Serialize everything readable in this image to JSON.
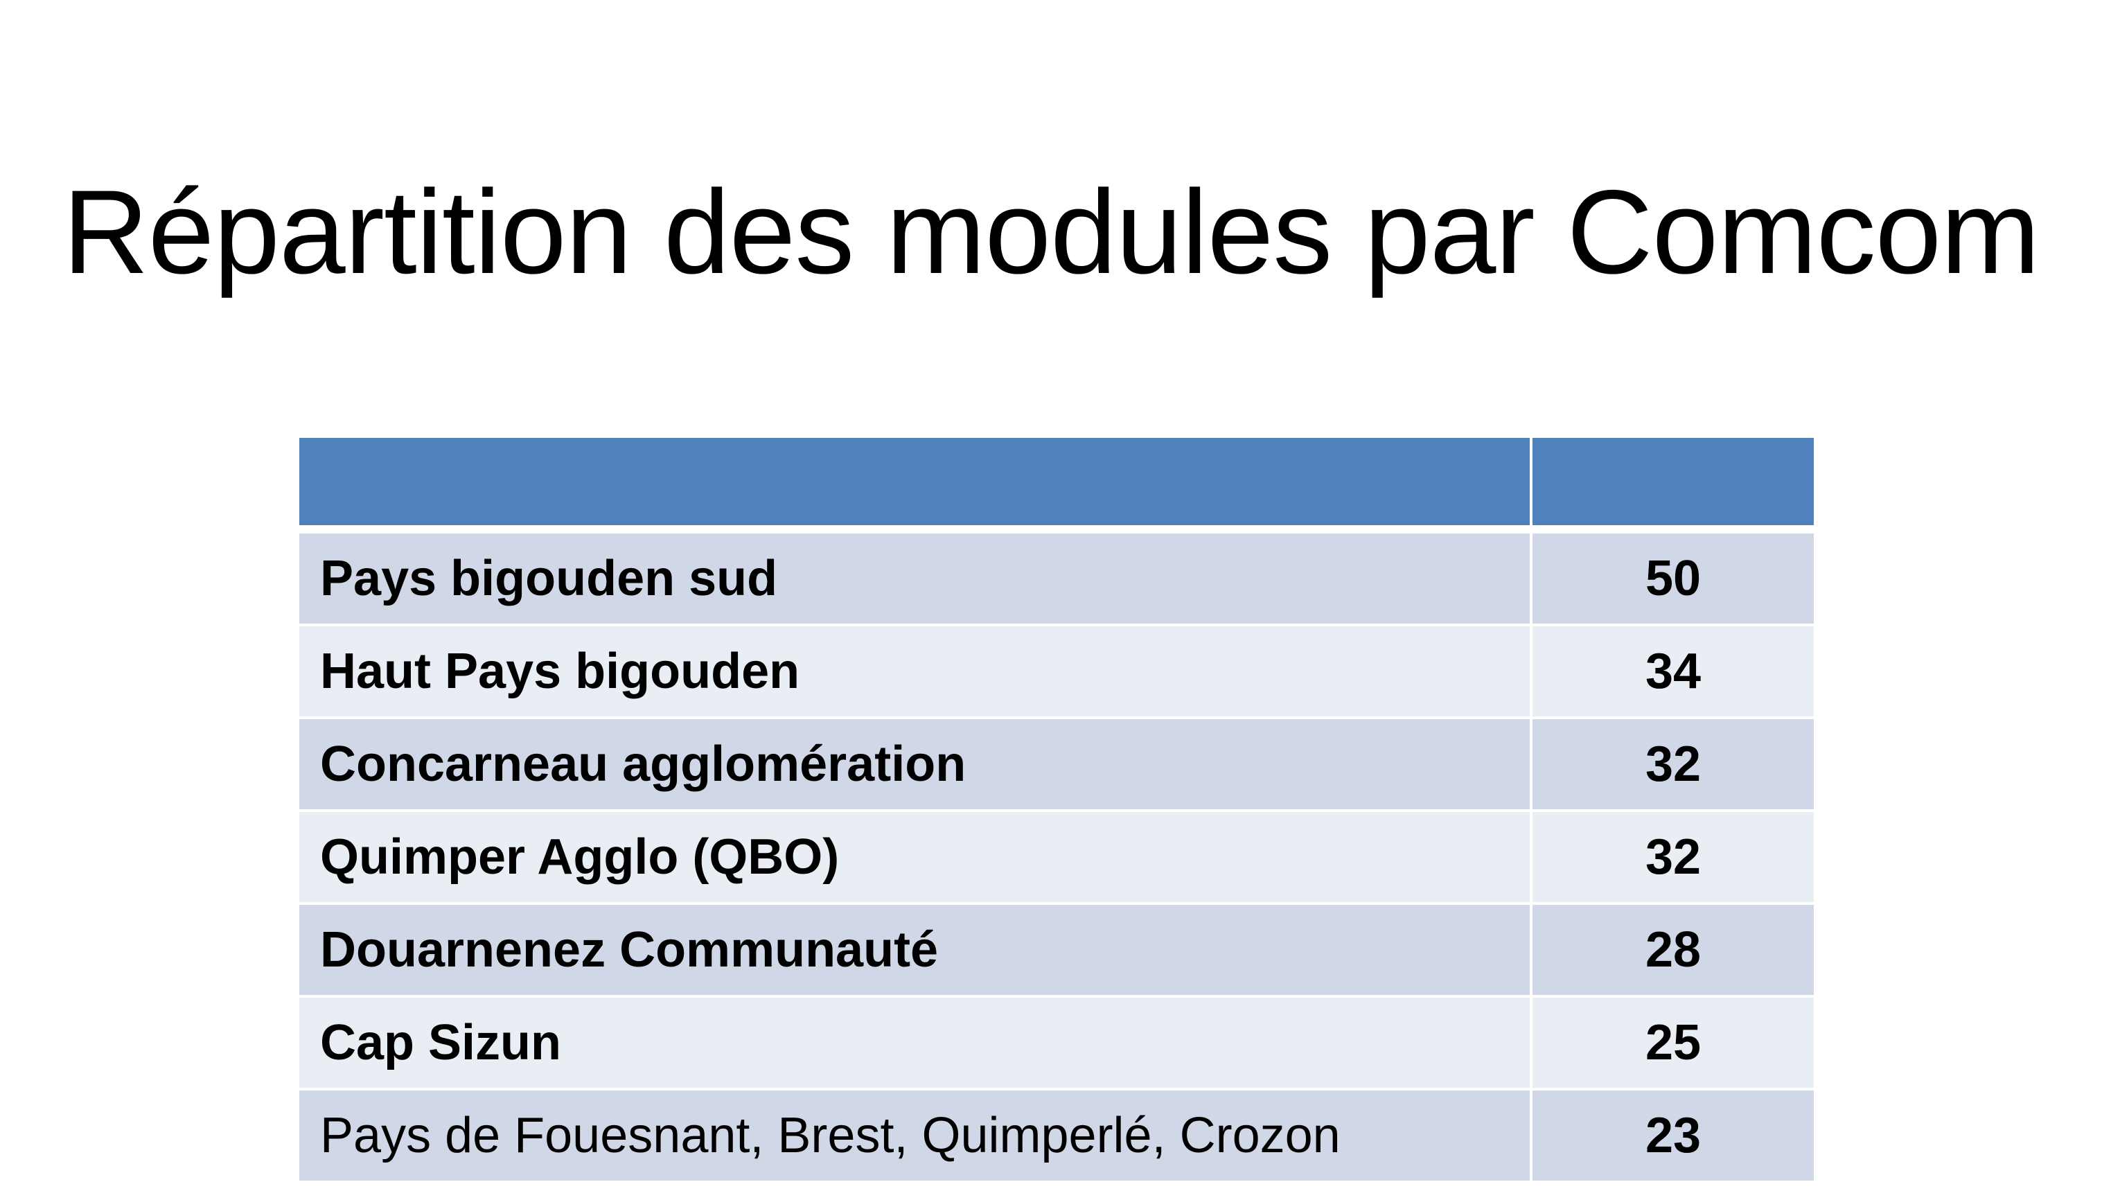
{
  "title": "Répartition des modules par Comcom",
  "table": {
    "headers": [
      "",
      ""
    ],
    "rows": [
      {
        "name": "Pays bigouden sud",
        "value": "50",
        "bold": true
      },
      {
        "name": "Haut Pays bigouden",
        "value": "34",
        "bold": true
      },
      {
        "name": "Concarneau agglomération",
        "value": "32",
        "bold": true
      },
      {
        "name": "Quimper Agglo (QBO)",
        "value": "32",
        "bold": true
      },
      {
        "name": "Douarnenez Communauté",
        "value": "28",
        "bold": true
      },
      {
        "name": "Cap Sizun",
        "value": "25",
        "bold": true
      },
      {
        "name": "Pays de Fouesnant, Brest, Quimperlé, Crozon",
        "value": "23",
        "bold": false
      }
    ]
  },
  "colors": {
    "header": "#4f81bd",
    "row_odd": "#d0d8e8",
    "row_even": "#e9edf4"
  }
}
